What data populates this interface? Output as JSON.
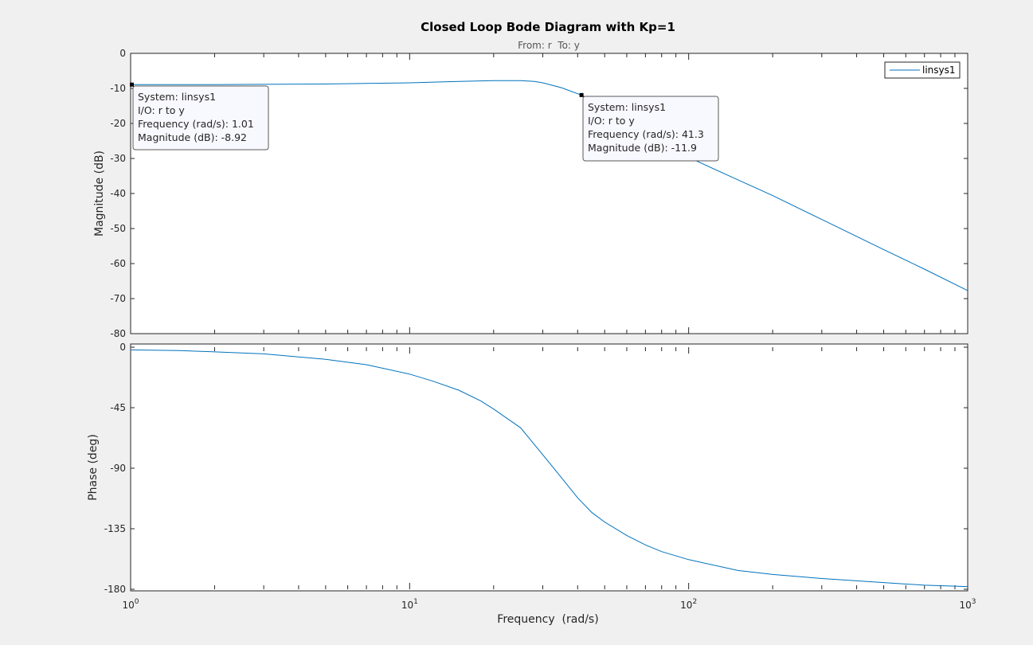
{
  "chart_data": {
    "type": "line",
    "title": "Closed Loop Bode Diagram with Kp=1",
    "subtitle": "From: r  To: y",
    "xlabel": "Frequency  (rad/s)",
    "xscale": "log",
    "xlim": [
      1,
      1000
    ],
    "x_tick_labels": [
      {
        "base": "10",
        "exp": "0"
      },
      {
        "base": "10",
        "exp": "1"
      },
      {
        "base": "10",
        "exp": "2"
      },
      {
        "base": "10",
        "exp": "3"
      }
    ],
    "grid": false,
    "legend": {
      "placement": "top-right",
      "entries": [
        "linsys1"
      ]
    },
    "line_color": "#0072bd",
    "magnitude": {
      "ylabel": "Magnitude (dB)",
      "ylim": [
        -80,
        0
      ],
      "y_ticks": [
        "0",
        "-10",
        "-20",
        "-30",
        "-40",
        "-50",
        "-60",
        "-70",
        "-80"
      ],
      "series": [
        {
          "name": "linsys1",
          "x": [
            1,
            2,
            3,
            5,
            7,
            10,
            15,
            20,
            25,
            28,
            30,
            35,
            41.3,
            50,
            60,
            80,
            100,
            150,
            200,
            300,
            500,
            700,
            1000
          ],
          "y": [
            -8.92,
            -8.9,
            -8.85,
            -8.75,
            -8.6,
            -8.4,
            -8.0,
            -7.8,
            -7.8,
            -8.0,
            -8.4,
            -9.8,
            -11.9,
            -15.7,
            -19.9,
            -25.7,
            -29.7,
            -36.1,
            -40.6,
            -47.4,
            -56.0,
            -61.6,
            -67.7
          ]
        }
      ]
    },
    "phase": {
      "ylabel": "Phase (deg)",
      "ylim": [
        -180,
        0
      ],
      "y_ticks": [
        "0",
        "-45",
        "-90",
        "-135",
        "-180"
      ],
      "series": [
        {
          "name": "linsys1",
          "x": [
            1,
            1.5,
            2,
            3,
            5,
            7,
            10,
            12,
            15,
            18,
            20,
            25,
            30,
            35,
            40,
            45,
            50,
            60,
            70,
            80,
            100,
            150,
            200,
            300,
            500,
            700,
            1000
          ],
          "y": [
            -2,
            -2.5,
            -3.5,
            -5,
            -9,
            -13,
            -20,
            -25,
            -32,
            -40,
            -46,
            -60,
            -80,
            -97,
            -112,
            -123,
            -130,
            -140,
            -147,
            -152,
            -158,
            -166,
            -169,
            -172,
            -175,
            -177,
            -178
          ]
        }
      ]
    },
    "data_tips": [
      {
        "system": "System: linsys1",
        "io": "I/O: r to y",
        "frequency": "Frequency (rad/s): 1.01",
        "magnitude": "Magnitude (dB): -8.92",
        "x": 1.01,
        "y": -8.92
      },
      {
        "system": "System: linsys1",
        "io": "I/O: r to y",
        "frequency": "Frequency (rad/s): 41.3",
        "magnitude": "Magnitude (dB): -11.9",
        "x": 41.3,
        "y": -11.9
      }
    ]
  }
}
